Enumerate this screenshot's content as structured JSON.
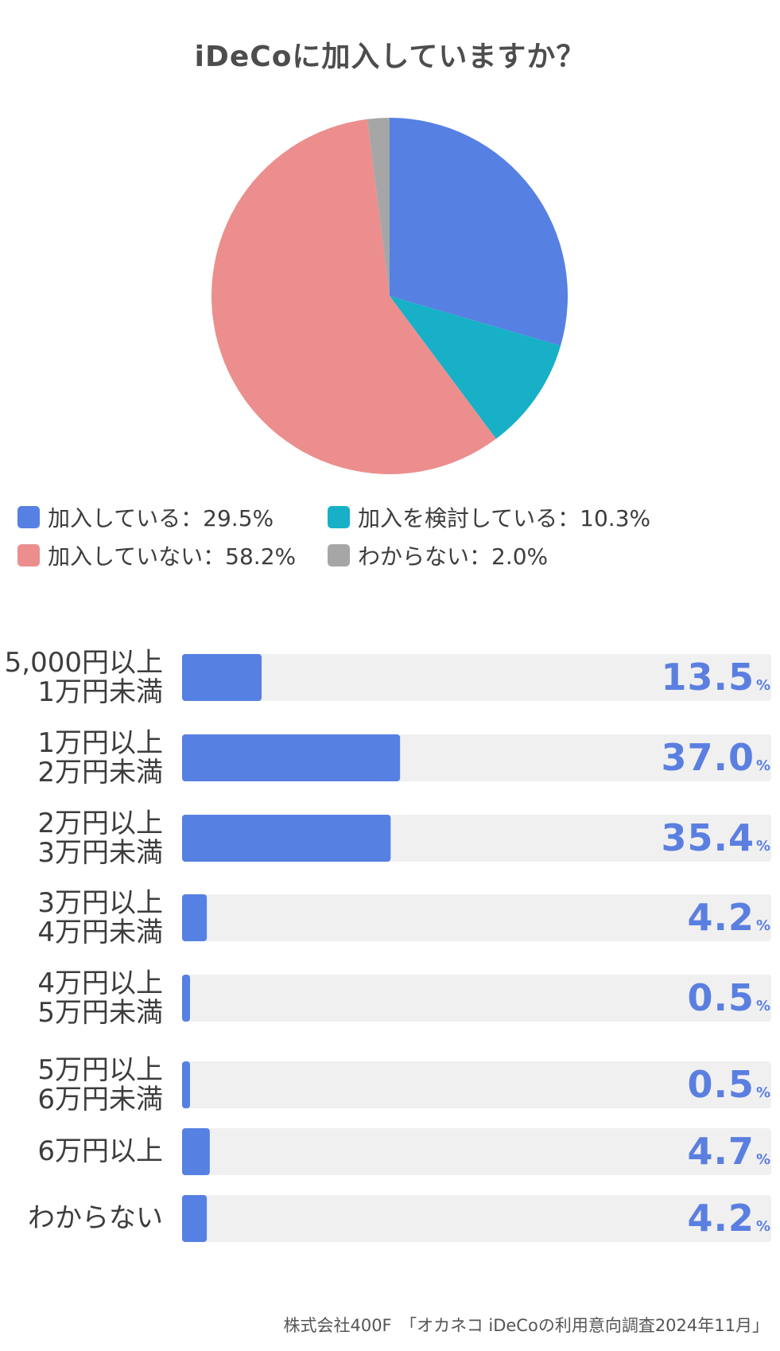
{
  "title": "iDeCoに加入していますか？",
  "chart_data": [
    {
      "type": "pie",
      "title": "iDeCoに加入していますか？",
      "slices": [
        {
          "label": "加入している",
          "value": 29.5,
          "legend": "加入している：29.5%",
          "color": "#5680e2"
        },
        {
          "label": "加入を検討している",
          "value": 10.3,
          "legend": "加入を検討している：10.3%",
          "color": "#17b0c7"
        },
        {
          "label": "加入していない",
          "value": 58.2,
          "legend": "加入していない：58.2%",
          "color": "#ec8e8e"
        },
        {
          "label": "わからない",
          "value": 2.0,
          "legend": "わからない：2.0%",
          "color": "#a6a6a6"
        }
      ]
    },
    {
      "type": "bar",
      "orientation": "horizontal",
      "unit": "%",
      "xlim": [
        0,
        100
      ],
      "bar_color": "#5680e2",
      "track_color": "#f0f0f0",
      "categories": [
        [
          "5,000円以上",
          "1万円未満"
        ],
        [
          "1万円以上",
          "2万円未満"
        ],
        [
          "2万円以上",
          "3万円未満"
        ],
        [
          "3万円以上",
          "4万円未満"
        ],
        [
          "4万円以上",
          "5万円未満"
        ],
        [
          "5万円以上",
          "6万円未満"
        ],
        [
          "6万円以上"
        ],
        [
          "わからない"
        ]
      ],
      "values": [
        13.5,
        37.0,
        35.4,
        4.2,
        0.5,
        0.5,
        4.7,
        4.2
      ],
      "value_labels": [
        "13.5",
        "37.0",
        "35.4",
        "4.2",
        "0.5",
        "0.5",
        "4.7",
        "4.2"
      ]
    }
  ],
  "source": "株式会社400F　「オカネコ iDeCoの利用意向調査2024年11月」"
}
